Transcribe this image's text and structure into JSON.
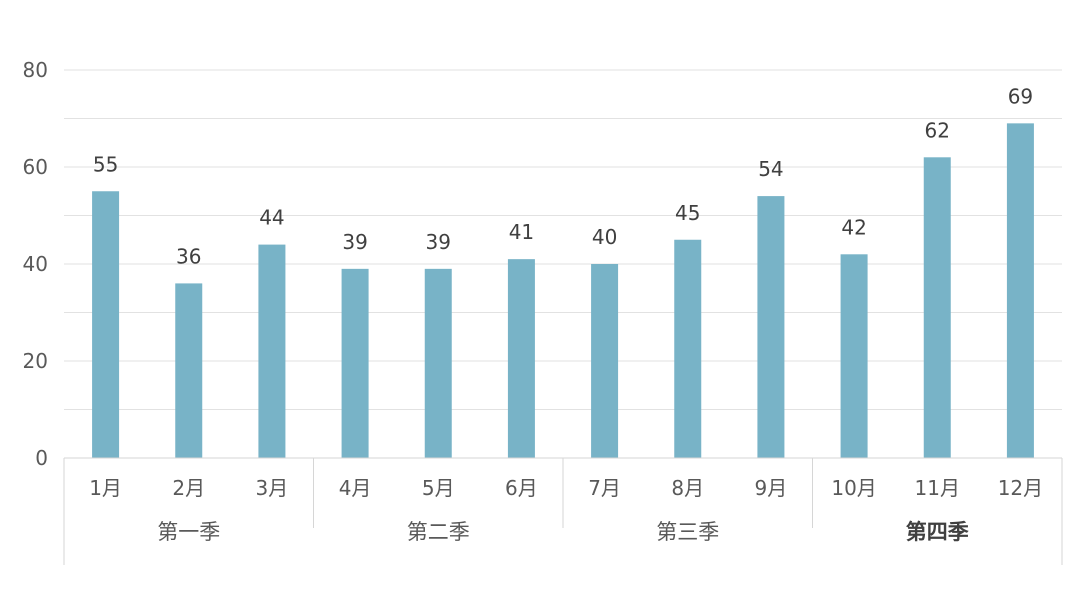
{
  "chart_data": {
    "type": "bar",
    "categories": [
      "1月",
      "2月",
      "3月",
      "4月",
      "5月",
      "6月",
      "7月",
      "8月",
      "9月",
      "10月",
      "11月",
      "12月"
    ],
    "values": [
      55,
      36,
      44,
      39,
      39,
      41,
      40,
      45,
      54,
      42,
      62,
      69
    ],
    "groups": [
      {
        "label": "第一季",
        "bold": false,
        "count": 3
      },
      {
        "label": "第二季",
        "bold": false,
        "count": 3
      },
      {
        "label": "第三季",
        "bold": false,
        "count": 3
      },
      {
        "label": "第四季",
        "bold": true,
        "count": 3
      }
    ],
    "title": "",
    "xlabel": "",
    "ylabel": "",
    "ylim": [
      0,
      80
    ],
    "yticks": [
      0,
      20,
      40,
      60,
      80
    ],
    "minor_grid_step": 10,
    "grid": true,
    "legend": "none",
    "data_labels": true,
    "bar_color": "#78b3c7"
  }
}
